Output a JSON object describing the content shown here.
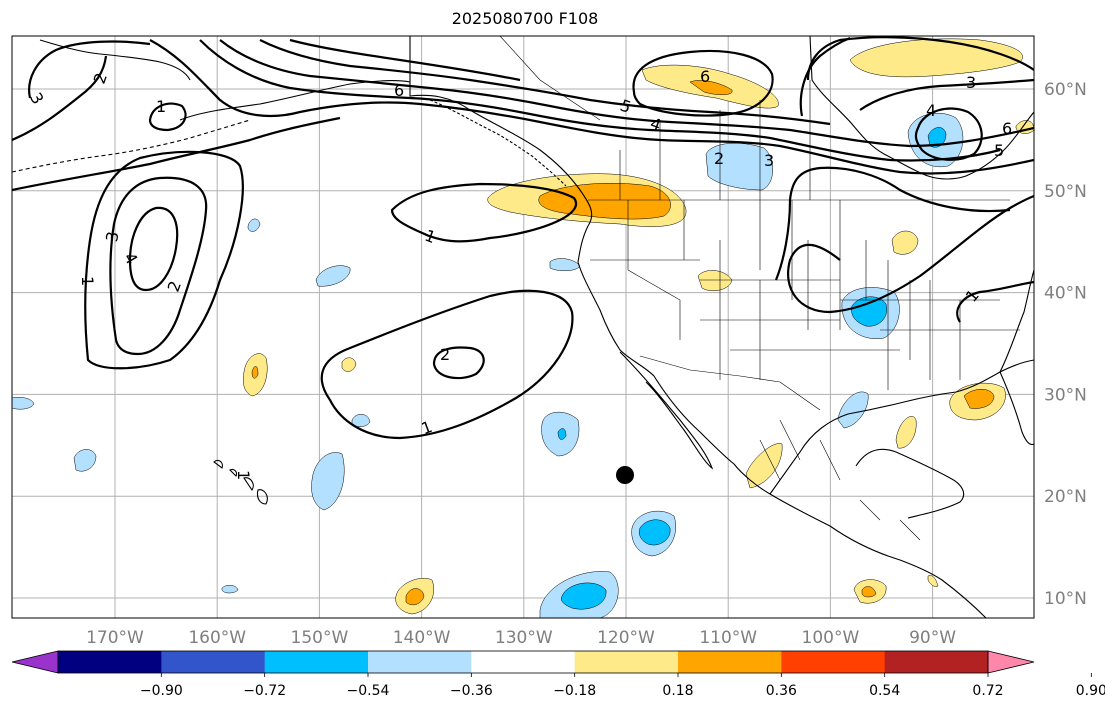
{
  "title": "2025080700 F108",
  "lon_labels": [
    "170°W",
    "160°W",
    "150°W",
    "140°W",
    "130°W",
    "120°W",
    "110°W",
    "100°W",
    "90°W"
  ],
  "lat_labels": [
    "10°N",
    "20°N",
    "30°N",
    "40°N",
    "50°N",
    "60°N"
  ],
  "colorbar": {
    "ticks": [
      "−0.90",
      "−0.72",
      "−0.54",
      "−0.36",
      "−0.18",
      "0.18",
      "0.36",
      "0.54",
      "0.72",
      "0.90"
    ],
    "colors": [
      "#9933cc",
      "#000080",
      "#3355cc",
      "#00bfff",
      "#b3e0ff",
      "#ffffff",
      "#ffea8a",
      "#ffa500",
      "#ff4000",
      "#b22222",
      "#ff88aa"
    ]
  },
  "contour_labels": [
    "1",
    "2",
    "3",
    "4",
    "5",
    "6"
  ],
  "colors": {
    "grid": "#b0b0b0",
    "contour": "#000000",
    "light_blue": "#b3e0ff",
    "blue": "#00bfff",
    "yellow": "#ffea8a",
    "orange": "#ffa500"
  },
  "markers": [
    {
      "name": "black-dot",
      "lon": -120.5,
      "lat": 22
    }
  ]
}
